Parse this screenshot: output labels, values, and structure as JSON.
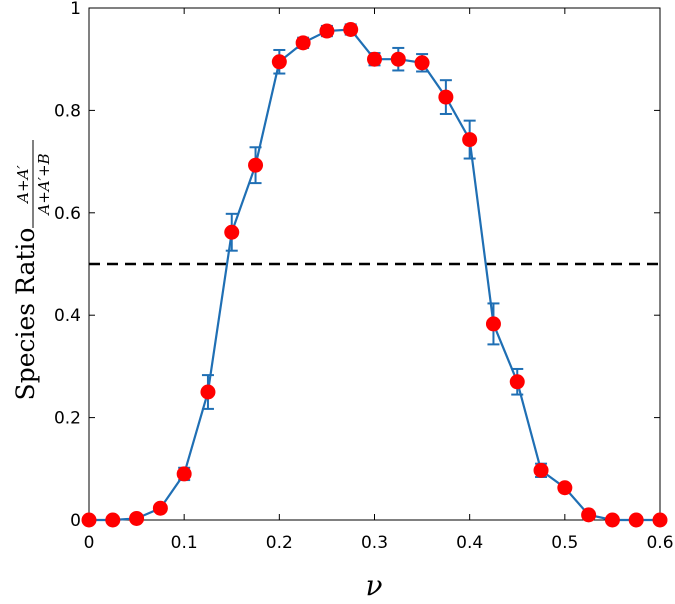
{
  "chart_data": {
    "type": "line",
    "title": "",
    "xlabel": "ν",
    "ylabel": "Species Ratio",
    "ylabel_fraction": {
      "numerator": "A+A′",
      "denominator": "A+A′+B"
    },
    "xlim": [
      0,
      0.6
    ],
    "ylim": [
      0,
      1
    ],
    "xticks": [
      0,
      0.1,
      0.2,
      0.3,
      0.4,
      0.5,
      0.6
    ],
    "xtick_labels": [
      "0",
      "0.1",
      "0.2",
      "0.3",
      "0.4",
      "0.5",
      "0.6"
    ],
    "yticks": [
      0,
      0.2,
      0.4,
      0.6,
      0.8,
      1
    ],
    "ytick_labels": [
      "0",
      "0.2",
      "0.4",
      "0.6",
      "0.8",
      "1"
    ],
    "grid": false,
    "legend": "none",
    "reference_line": {
      "y": 0.5,
      "style": "dashed",
      "color": "#000000"
    },
    "series": [
      {
        "line_color": "#1f6fb4",
        "marker_color": "#ff0000",
        "marker": "circle",
        "x": [
          0,
          0.025,
          0.05,
          0.075,
          0.1,
          0.125,
          0.15,
          0.175,
          0.2,
          0.225,
          0.25,
          0.275,
          0.3,
          0.325,
          0.35,
          0.375,
          0.4,
          0.425,
          0.45,
          0.475,
          0.5,
          0.525,
          0.55,
          0.575,
          0.6
        ],
        "y": [
          0,
          0,
          0.003,
          0.023,
          0.09,
          0.25,
          0.562,
          0.693,
          0.895,
          0.932,
          0.955,
          0.958,
          0.9,
          0.9,
          0.893,
          0.826,
          0.743,
          0.383,
          0.27,
          0.097,
          0.063,
          0.01,
          0,
          0,
          0
        ],
        "error": [
          0,
          0,
          0,
          0,
          0.012,
          0.033,
          0.036,
          0.035,
          0.023,
          0.01,
          0.01,
          0.01,
          0.012,
          0.022,
          0.017,
          0.033,
          0.037,
          0.04,
          0.025,
          0.013,
          0.007,
          0,
          0,
          0,
          0
        ]
      }
    ]
  }
}
